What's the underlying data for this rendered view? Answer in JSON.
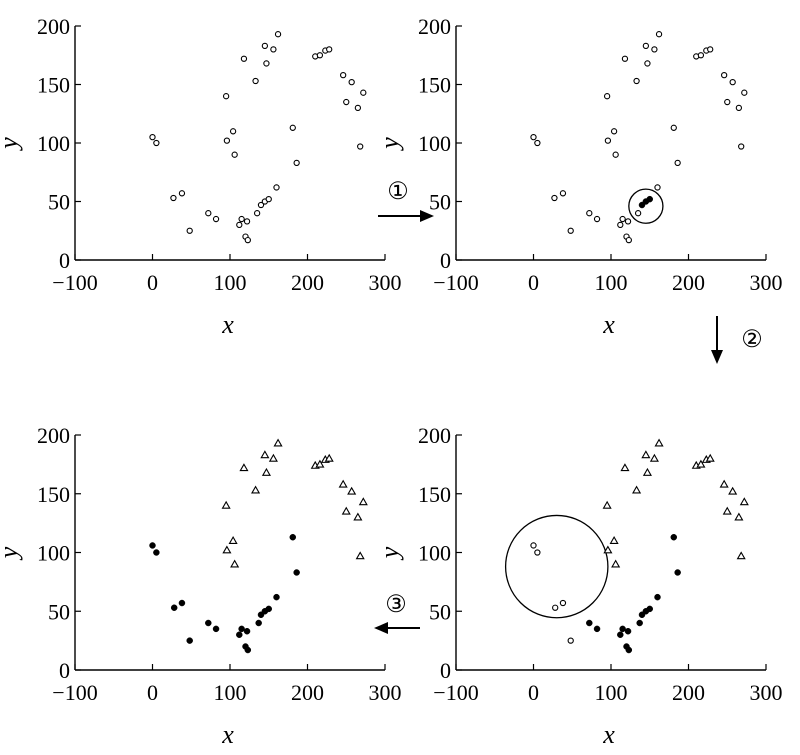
{
  "figure": {
    "steps": [
      "①",
      "②",
      "③"
    ]
  },
  "chart_data": [
    {
      "type": "scatter",
      "xlabel": "x",
      "ylabel": "y",
      "xlim": [
        -100,
        300
      ],
      "ylim": [
        0,
        200
      ],
      "xticks": [
        -100,
        0,
        100,
        200,
        300
      ],
      "yticks": [
        0,
        50,
        100,
        150,
        200
      ],
      "xtick_labels": [
        "−100",
        "0",
        "100",
        "200",
        "300"
      ],
      "ytick_labels": [
        "0",
        "50",
        "100",
        "150",
        "200"
      ],
      "series": [
        {
          "marker": "open-circle",
          "points": [
            [
              0,
              105
            ],
            [
              5,
              100
            ],
            [
              27,
              53
            ],
            [
              38,
              57
            ],
            [
              48,
              25
            ],
            [
              72,
              40
            ],
            [
              82,
              35
            ],
            [
              112,
              30
            ],
            [
              115,
              35
            ],
            [
              122,
              33
            ],
            [
              120,
              20
            ],
            [
              123,
              17
            ],
            [
              135,
              40
            ],
            [
              140,
              47
            ],
            [
              145,
              50
            ],
            [
              150,
              52
            ],
            [
              160,
              62
            ],
            [
              181,
              113
            ],
            [
              186,
              83
            ],
            [
              95,
              140
            ],
            [
              96,
              102
            ],
            [
              104,
              110
            ],
            [
              106,
              90
            ],
            [
              118,
              172
            ],
            [
              133,
              153
            ],
            [
              145,
              183
            ],
            [
              147,
              168
            ],
            [
              156,
              180
            ],
            [
              162,
              193
            ],
            [
              210,
              174
            ],
            [
              216,
              175
            ],
            [
              223,
              179
            ],
            [
              228,
              180
            ],
            [
              246,
              158
            ],
            [
              250,
              135
            ],
            [
              257,
              152
            ],
            [
              265,
              130
            ],
            [
              268,
              97
            ],
            [
              272,
              143
            ]
          ]
        }
      ],
      "circle": null
    },
    {
      "type": "scatter",
      "xlabel": "x",
      "ylabel": "y",
      "xlim": [
        -100,
        300
      ],
      "ylim": [
        0,
        200
      ],
      "xticks": [
        -100,
        0,
        100,
        200,
        300
      ],
      "yticks": [
        0,
        50,
        100,
        150,
        200
      ],
      "xtick_labels": [
        "−100",
        "0",
        "100",
        "200",
        "300"
      ],
      "ytick_labels": [
        "0",
        "50",
        "100",
        "150",
        "200"
      ],
      "series": [
        {
          "marker": "open-circle",
          "points": [
            [
              0,
              105
            ],
            [
              5,
              100
            ],
            [
              27,
              53
            ],
            [
              38,
              57
            ],
            [
              48,
              25
            ],
            [
              72,
              40
            ],
            [
              82,
              35
            ],
            [
              112,
              30
            ],
            [
              115,
              35
            ],
            [
              122,
              33
            ],
            [
              120,
              20
            ],
            [
              123,
              17
            ],
            [
              135,
              40
            ],
            [
              160,
              62
            ],
            [
              181,
              113
            ],
            [
              186,
              83
            ],
            [
              95,
              140
            ],
            [
              96,
              102
            ],
            [
              104,
              110
            ],
            [
              106,
              90
            ],
            [
              118,
              172
            ],
            [
              133,
              153
            ],
            [
              145,
              183
            ],
            [
              147,
              168
            ],
            [
              156,
              180
            ],
            [
              162,
              193
            ],
            [
              210,
              174
            ],
            [
              216,
              175
            ],
            [
              223,
              179
            ],
            [
              228,
              180
            ],
            [
              246,
              158
            ],
            [
              250,
              135
            ],
            [
              257,
              152
            ],
            [
              265,
              130
            ],
            [
              268,
              97
            ],
            [
              272,
              143
            ]
          ]
        },
        {
          "marker": "filled-circle",
          "points": [
            [
              140,
              47
            ],
            [
              145,
              50
            ],
            [
              150,
              52
            ]
          ]
        }
      ],
      "circle": {
        "cx": 145,
        "cy": 46,
        "r": 22
      }
    },
    {
      "type": "scatter",
      "xlabel": "x",
      "ylabel": "y",
      "xlim": [
        -100,
        300
      ],
      "ylim": [
        0,
        200
      ],
      "xticks": [
        -100,
        0,
        100,
        200,
        300
      ],
      "yticks": [
        0,
        50,
        100,
        150,
        200
      ],
      "xtick_labels": [
        "−100",
        "0",
        "100",
        "200",
        "300"
      ],
      "ytick_labels": [
        "0",
        "50",
        "100",
        "150",
        "200"
      ],
      "series": [
        {
          "marker": "open-circle",
          "points": [
            [
              0,
              106
            ],
            [
              5,
              100
            ],
            [
              28,
              53
            ],
            [
              38,
              57
            ],
            [
              48,
              25
            ]
          ]
        },
        {
          "marker": "filled-circle",
          "points": [
            [
              72,
              40
            ],
            [
              82,
              35
            ],
            [
              112,
              30
            ],
            [
              115,
              35
            ],
            [
              122,
              33
            ],
            [
              120,
              20
            ],
            [
              123,
              17
            ],
            [
              137,
              40
            ],
            [
              140,
              47
            ],
            [
              145,
              50
            ],
            [
              150,
              52
            ],
            [
              160,
              62
            ],
            [
              181,
              113
            ],
            [
              186,
              83
            ]
          ]
        },
        {
          "marker": "open-triangle",
          "points": [
            [
              95,
              140
            ],
            [
              96,
              102
            ],
            [
              104,
              110
            ],
            [
              106,
              90
            ],
            [
              118,
              172
            ],
            [
              133,
              153
            ],
            [
              145,
              183
            ],
            [
              147,
              168
            ],
            [
              156,
              180
            ],
            [
              162,
              193
            ],
            [
              210,
              174
            ],
            [
              216,
              175
            ],
            [
              223,
              179
            ],
            [
              228,
              180
            ],
            [
              246,
              158
            ],
            [
              250,
              135
            ],
            [
              257,
              152
            ],
            [
              265,
              130
            ],
            [
              268,
              97
            ],
            [
              272,
              143
            ]
          ]
        }
      ],
      "circle": {
        "cx": 30,
        "cy": 88,
        "r": 66
      }
    },
    {
      "type": "scatter",
      "xlabel": "x",
      "ylabel": "y",
      "xlim": [
        -100,
        300
      ],
      "ylim": [
        0,
        200
      ],
      "xticks": [
        -100,
        0,
        100,
        200,
        300
      ],
      "yticks": [
        0,
        50,
        100,
        150,
        200
      ],
      "xtick_labels": [
        "−100",
        "0",
        "100",
        "200",
        "300"
      ],
      "ytick_labels": [
        "0",
        "50",
        "100",
        "150",
        "200"
      ],
      "series": [
        {
          "marker": "filled-circle",
          "points": [
            [
              0,
              106
            ],
            [
              5,
              100
            ],
            [
              28,
              53
            ],
            [
              38,
              57
            ],
            [
              48,
              25
            ],
            [
              72,
              40
            ],
            [
              82,
              35
            ],
            [
              112,
              30
            ],
            [
              115,
              35
            ],
            [
              122,
              33
            ],
            [
              120,
              20
            ],
            [
              123,
              17
            ],
            [
              137,
              40
            ],
            [
              140,
              47
            ],
            [
              145,
              50
            ],
            [
              150,
              52
            ],
            [
              160,
              62
            ],
            [
              181,
              113
            ],
            [
              186,
              83
            ]
          ]
        },
        {
          "marker": "open-triangle",
          "points": [
            [
              95,
              140
            ],
            [
              96,
              102
            ],
            [
              104,
              110
            ],
            [
              106,
              90
            ],
            [
              118,
              172
            ],
            [
              133,
              153
            ],
            [
              145,
              183
            ],
            [
              147,
              168
            ],
            [
              156,
              180
            ],
            [
              162,
              193
            ],
            [
              210,
              174
            ],
            [
              216,
              175
            ],
            [
              223,
              179
            ],
            [
              228,
              180
            ],
            [
              246,
              158
            ],
            [
              250,
              135
            ],
            [
              257,
              152
            ],
            [
              265,
              130
            ],
            [
              268,
              97
            ],
            [
              272,
              143
            ]
          ]
        }
      ],
      "circle": null
    }
  ]
}
